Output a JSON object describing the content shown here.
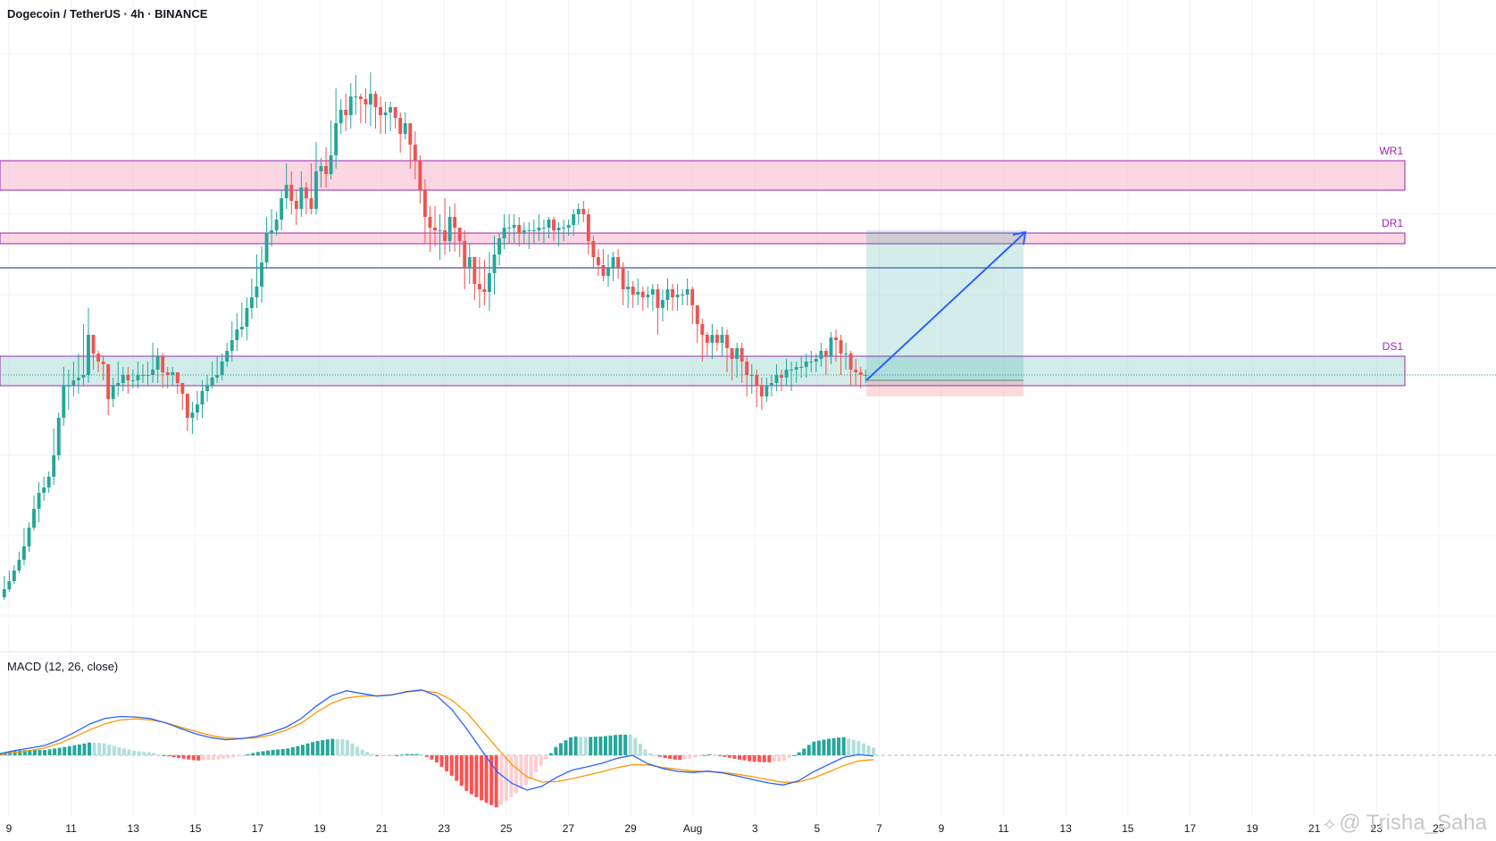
{
  "header": {
    "title": "Dogecoin / TetherUS · 4h · BINANCE"
  },
  "macd": {
    "title": "MACD (12, 26, close)"
  },
  "watermark": {
    "text": "@ Trisha_Saha"
  },
  "chart_data": {
    "type": "candlestick",
    "symbol": "Dogecoin / TetherUS",
    "timeframe": "4h",
    "exchange": "BINANCE",
    "x_ticks": [
      "9",
      "11",
      "13",
      "15",
      "17",
      "19",
      "21",
      "23",
      "25",
      "27",
      "29",
      "Aug",
      "3",
      "5",
      "7",
      "9",
      "11",
      "13",
      "15",
      "17",
      "19",
      "21",
      "23",
      "25"
    ],
    "zones": [
      {
        "label": "WR1",
        "color": "#f8bbd0",
        "border": "#9c27b0"
      },
      {
        "label": "DR1",
        "color": "#f8bbd0",
        "border": "#9c27b0"
      },
      {
        "label": "DS1",
        "color": "#b2dfdb",
        "border": "#9c27b0"
      }
    ],
    "series": [
      {
        "name": "price",
        "close": [
          0.054,
          0.0543,
          0.0547,
          0.0551,
          0.0556,
          0.0563,
          0.057,
          0.0576,
          0.0578,
          0.0582,
          0.059,
          0.0604,
          0.0616,
          0.0616,
          0.0618,
          0.0619,
          0.062,
          0.0635,
          0.0628,
          0.0625,
          0.0624,
          0.0611,
          0.0616,
          0.0617,
          0.062,
          0.0618,
          0.0618,
          0.062,
          0.062,
          0.062,
          0.0622,
          0.0627,
          0.0621,
          0.062,
          0.0621,
          0.0617,
          0.0613,
          0.0604,
          0.0606,
          0.0609,
          0.0614,
          0.0616,
          0.0619,
          0.062,
          0.0625,
          0.0629,
          0.0633,
          0.0637,
          0.0638,
          0.0645,
          0.0649,
          0.0653,
          0.0662,
          0.0673,
          0.0674,
          0.0678,
          0.0686,
          0.0691,
          0.0685,
          0.0682,
          0.069,
          0.0686,
          0.0682,
          0.0696,
          0.0698,
          0.0695,
          0.0702,
          0.0714,
          0.0719,
          0.0717,
          0.0724,
          0.0724,
          0.0723,
          0.0721,
          0.0725,
          0.072,
          0.0717,
          0.0718,
          0.072,
          0.0716,
          0.071,
          0.0714,
          0.0706,
          0.07,
          0.0689,
          0.0679,
          0.0675,
          0.0674,
          0.0674,
          0.067,
          0.0679,
          0.0675,
          0.067,
          0.066,
          0.0664,
          0.0654,
          0.0652,
          0.0651,
          0.0658,
          0.0665,
          0.0671,
          0.0675,
          0.0675,
          0.0676,
          0.0673,
          0.0674,
          0.0674,
          0.0674,
          0.0675,
          0.0675,
          0.0678,
          0.0674,
          0.0675,
          0.0675,
          0.0676,
          0.068,
          0.0682,
          0.068,
          0.067,
          0.0664,
          0.0661,
          0.0657,
          0.066,
          0.0664,
          0.066,
          0.0652,
          0.0653,
          0.065,
          0.0651,
          0.0649,
          0.065,
          0.0652,
          0.0645,
          0.0648,
          0.0652,
          0.0649,
          0.065,
          0.065,
          0.0652,
          0.0646,
          0.0639,
          0.0635,
          0.0632,
          0.0635,
          0.0632,
          0.0635,
          0.063,
          0.0626,
          0.063,
          0.0625,
          0.062,
          0.062,
          0.0616,
          0.0612,
          0.0616,
          0.0617,
          0.062,
          0.0619,
          0.0622,
          0.0622,
          0.0623,
          0.0623,
          0.0625,
          0.0625,
          0.0626,
          0.0629,
          0.0627,
          0.0634,
          0.0633,
          0.0628,
          0.0628,
          0.0622,
          0.0621,
          0.062,
          0.062
        ],
        "high": [
          0.0545,
          0.0547,
          0.0549,
          0.0554,
          0.0563,
          0.0565,
          0.0575,
          0.058,
          0.0582,
          0.0584,
          0.06,
          0.0606,
          0.0623,
          0.0622,
          0.0625,
          0.0628,
          0.0639,
          0.0645,
          0.0635,
          0.0629,
          0.0627,
          0.0619,
          0.0619,
          0.0625,
          0.0623,
          0.0623,
          0.0622,
          0.0625,
          0.0624,
          0.0625,
          0.0632,
          0.063,
          0.0628,
          0.0623,
          0.0623,
          0.0621,
          0.0617,
          0.0612,
          0.061,
          0.0614,
          0.0618,
          0.062,
          0.0625,
          0.0627,
          0.0628,
          0.0632,
          0.064,
          0.0643,
          0.0647,
          0.0649,
          0.0656,
          0.0665,
          0.0668,
          0.0679,
          0.0682,
          0.0681,
          0.0689,
          0.0699,
          0.0696,
          0.0689,
          0.0696,
          0.0692,
          0.0699,
          0.0707,
          0.0701,
          0.0705,
          0.0715,
          0.0727,
          0.0723,
          0.0725,
          0.0729,
          0.0732,
          0.0725,
          0.0727,
          0.0733,
          0.0726,
          0.0724,
          0.0722,
          0.0722,
          0.072,
          0.0718,
          0.0718,
          0.0713,
          0.0711,
          0.0702,
          0.0693,
          0.0683,
          0.0683,
          0.068,
          0.0686,
          0.0683,
          0.0684,
          0.0675,
          0.0674,
          0.0669,
          0.0664,
          0.0664,
          0.0663,
          0.0666,
          0.0672,
          0.0673,
          0.068,
          0.068,
          0.068,
          0.0679,
          0.0677,
          0.0677,
          0.0678,
          0.068,
          0.0678,
          0.0679,
          0.0679,
          0.0677,
          0.0678,
          0.0678,
          0.0682,
          0.0684,
          0.0685,
          0.0682,
          0.0672,
          0.0667,
          0.0667,
          0.0665,
          0.0666,
          0.0667,
          0.0662,
          0.0659,
          0.0655,
          0.0656,
          0.0653,
          0.0653,
          0.0654,
          0.0654,
          0.0652,
          0.0656,
          0.0654,
          0.0654,
          0.0652,
          0.0656,
          0.0653,
          0.0646,
          0.0641,
          0.0636,
          0.0639,
          0.0637,
          0.0638,
          0.0637,
          0.063,
          0.0632,
          0.0632,
          0.0627,
          0.0624,
          0.0622,
          0.0619,
          0.0619,
          0.062,
          0.0624,
          0.0622,
          0.0626,
          0.0625,
          0.0625,
          0.0627,
          0.0628,
          0.0629,
          0.0628,
          0.0632,
          0.063,
          0.0636,
          0.0637,
          0.0635,
          0.0632,
          0.0629,
          0.0626,
          0.0623,
          0.0622
        ],
        "low": [
          0.0536,
          0.0539,
          0.0542,
          0.0546,
          0.0549,
          0.0554,
          0.0562,
          0.0565,
          0.0573,
          0.0576,
          0.0579,
          0.0588,
          0.0601,
          0.0607,
          0.0612,
          0.0613,
          0.0616,
          0.0617,
          0.0622,
          0.0621,
          0.0618,
          0.0605,
          0.0608,
          0.0612,
          0.0614,
          0.0613,
          0.0615,
          0.0615,
          0.0617,
          0.0616,
          0.0617,
          0.0617,
          0.0615,
          0.0615,
          0.0616,
          0.0613,
          0.0607,
          0.0599,
          0.0598,
          0.0603,
          0.0604,
          0.061,
          0.0615,
          0.0617,
          0.0618,
          0.0623,
          0.0625,
          0.0629,
          0.0634,
          0.0633,
          0.0641,
          0.0645,
          0.0647,
          0.066,
          0.0668,
          0.0672,
          0.0674,
          0.0682,
          0.068,
          0.0676,
          0.0679,
          0.068,
          0.068,
          0.068,
          0.069,
          0.069,
          0.0693,
          0.0697,
          0.071,
          0.0711,
          0.0712,
          0.0717,
          0.0714,
          0.0714,
          0.0713,
          0.0712,
          0.071,
          0.071,
          0.0711,
          0.0712,
          0.0703,
          0.0708,
          0.0697,
          0.0693,
          0.0684,
          0.0669,
          0.0666,
          0.0668,
          0.0663,
          0.0665,
          0.0666,
          0.0666,
          0.0664,
          0.0652,
          0.0654,
          0.0648,
          0.0645,
          0.0646,
          0.0644,
          0.065,
          0.0661,
          0.0667,
          0.0669,
          0.0669,
          0.0668,
          0.0669,
          0.0667,
          0.0669,
          0.067,
          0.0669,
          0.0671,
          0.067,
          0.0668,
          0.067,
          0.0672,
          0.0672,
          0.0676,
          0.0677,
          0.0665,
          0.066,
          0.0657,
          0.0655,
          0.0653,
          0.0655,
          0.0656,
          0.0646,
          0.0645,
          0.0645,
          0.0646,
          0.0644,
          0.0645,
          0.0644,
          0.0635,
          0.064,
          0.0644,
          0.0644,
          0.0644,
          0.0646,
          0.0646,
          0.0639,
          0.0632,
          0.0625,
          0.0627,
          0.0626,
          0.0629,
          0.0627,
          0.0621,
          0.0618,
          0.0619,
          0.0617,
          0.0612,
          0.0613,
          0.0608,
          0.0607,
          0.061,
          0.0612,
          0.0614,
          0.0614,
          0.0616,
          0.0614,
          0.0617,
          0.0619,
          0.0619,
          0.0621,
          0.0621,
          0.0623,
          0.062,
          0.0624,
          0.0625,
          0.062,
          0.0622,
          0.0616,
          0.0616,
          0.0615,
          0.0617
        ]
      },
      {
        "name": "MACD",
        "color": "#2962ff",
        "values": [
          6e-05,
          0.00018,
          0.00027,
          0.00037,
          0.00059,
          0.00087,
          0.00118,
          0.00138,
          0.00145,
          0.00143,
          0.00137,
          0.00121,
          0.001,
          0.0008,
          0.00066,
          0.00058,
          0.00062,
          0.0007,
          0.00085,
          0.00105,
          0.00137,
          0.00184,
          0.00222,
          0.00241,
          0.00231,
          0.00221,
          0.00225,
          0.00238,
          0.00244,
          0.00222,
          0.00171,
          0.00098,
          0.00017,
          -0.00061,
          -0.00105,
          -0.0013,
          -0.00115,
          -0.00081,
          -0.00055,
          -0.00043,
          -0.00029,
          -0.00011,
          0.0,
          -0.00031,
          -0.00049,
          -0.0006,
          -0.00064,
          -0.00059,
          -0.00066,
          -0.00078,
          -0.00091,
          -0.00103,
          -0.00111,
          -0.00096,
          -0.00062,
          -0.00035,
          -8e-05,
          3e-05,
          -3e-05
        ]
      },
      {
        "name": "Signal",
        "color": "#ff9800",
        "values": [
          4e-05,
          0.0001,
          0.00018,
          0.00028,
          0.00046,
          0.0007,
          0.00096,
          0.00118,
          0.00132,
          0.00136,
          0.00132,
          0.00122,
          0.00105,
          0.00089,
          0.00074,
          0.00064,
          0.00063,
          0.00065,
          0.00076,
          0.00094,
          0.0012,
          0.0016,
          0.00194,
          0.00214,
          0.00221,
          0.00222,
          0.00226,
          0.00236,
          0.00242,
          0.00234,
          0.00206,
          0.00159,
          0.00094,
          0.00028,
          -0.00035,
          -0.00081,
          -0.001,
          -0.00098,
          -0.00087,
          -0.00074,
          -0.00061,
          -0.00046,
          -0.00035,
          -0.00036,
          -0.00045,
          -0.00052,
          -0.00059,
          -0.00061,
          -0.00064,
          -0.00071,
          -0.0008,
          -0.00091,
          -0.00101,
          -0.001,
          -0.00085,
          -0.00063,
          -0.00039,
          -0.00021,
          -0.00016
        ]
      }
    ],
    "last_price": 0.062,
    "level_line": 0.066,
    "zone_bounds": [
      [
        0.07,
        0.0689
      ],
      [
        0.0673,
        0.0669
      ],
      [
        0.0627,
        0.0616
      ]
    ],
    "position": {
      "entry": 0.0618,
      "target": 0.0674,
      "stop": 0.0612
    }
  }
}
